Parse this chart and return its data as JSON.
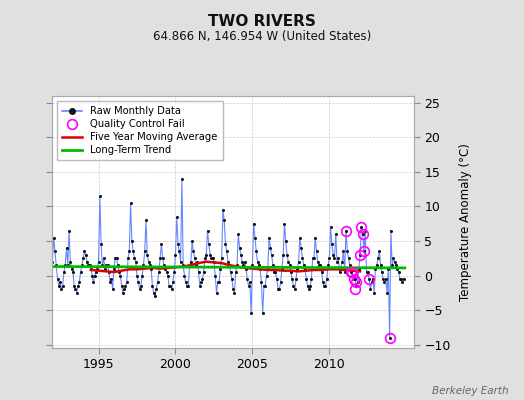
{
  "title": "TWO RIVERS",
  "subtitle": "64.866 N, 146.954 W (United States)",
  "ylabel": "Temperature Anomaly (°C)",
  "watermark": "Berkeley Earth",
  "background_color": "#e0e0e0",
  "plot_bg_color": "#ffffff",
  "ylim": [
    -10.5,
    26
  ],
  "xlim": [
    1992.0,
    2015.5
  ],
  "yticks": [
    -10,
    -5,
    0,
    5,
    10,
    15,
    20,
    25
  ],
  "xticks": [
    1995,
    2000,
    2005,
    2010
  ],
  "grid_color": "#cccccc",
  "raw_line_color": "#6688ff",
  "raw_marker_color": "#111111",
  "moving_avg_color": "#dd0000",
  "trend_color": "#00bb00",
  "qc_fail_color": "#ff00ff",
  "raw_data_x": [
    1992.0,
    1992.083,
    1992.167,
    1992.25,
    1992.333,
    1992.417,
    1992.5,
    1992.583,
    1992.667,
    1992.75,
    1992.833,
    1992.917,
    1993.0,
    1993.083,
    1993.167,
    1993.25,
    1993.333,
    1993.417,
    1993.5,
    1993.583,
    1993.667,
    1993.75,
    1993.833,
    1993.917,
    1994.0,
    1994.083,
    1994.167,
    1994.25,
    1994.333,
    1994.417,
    1994.5,
    1994.583,
    1994.667,
    1994.75,
    1994.833,
    1994.917,
    1995.0,
    1995.083,
    1995.167,
    1995.25,
    1995.333,
    1995.417,
    1995.5,
    1995.583,
    1995.667,
    1995.75,
    1995.833,
    1995.917,
    1996.0,
    1996.083,
    1996.167,
    1996.25,
    1996.333,
    1996.417,
    1996.5,
    1996.583,
    1996.667,
    1996.75,
    1996.833,
    1996.917,
    1997.0,
    1997.083,
    1997.167,
    1997.25,
    1997.333,
    1997.417,
    1997.5,
    1997.583,
    1997.667,
    1997.75,
    1997.833,
    1997.917,
    1998.0,
    1998.083,
    1998.167,
    1998.25,
    1998.333,
    1998.417,
    1998.5,
    1998.583,
    1998.667,
    1998.75,
    1998.833,
    1998.917,
    1999.0,
    1999.083,
    1999.167,
    1999.25,
    1999.333,
    1999.417,
    1999.5,
    1999.583,
    1999.667,
    1999.75,
    1999.833,
    1999.917,
    2000.0,
    2000.083,
    2000.167,
    2000.25,
    2000.333,
    2000.417,
    2000.5,
    2000.583,
    2000.667,
    2000.75,
    2000.833,
    2000.917,
    2001.0,
    2001.083,
    2001.167,
    2001.25,
    2001.333,
    2001.417,
    2001.5,
    2001.583,
    2001.667,
    2001.75,
    2001.833,
    2001.917,
    2002.0,
    2002.083,
    2002.167,
    2002.25,
    2002.333,
    2002.417,
    2002.5,
    2002.583,
    2002.667,
    2002.75,
    2002.833,
    2002.917,
    2003.0,
    2003.083,
    2003.167,
    2003.25,
    2003.333,
    2003.417,
    2003.5,
    2003.583,
    2003.667,
    2003.75,
    2003.833,
    2003.917,
    2004.0,
    2004.083,
    2004.167,
    2004.25,
    2004.333,
    2004.417,
    2004.5,
    2004.583,
    2004.667,
    2004.75,
    2004.833,
    2004.917,
    2005.0,
    2005.083,
    2005.167,
    2005.25,
    2005.333,
    2005.417,
    2005.5,
    2005.583,
    2005.667,
    2005.75,
    2005.833,
    2005.917,
    2006.0,
    2006.083,
    2006.167,
    2006.25,
    2006.333,
    2006.417,
    2006.5,
    2006.583,
    2006.667,
    2006.75,
    2006.833,
    2006.917,
    2007.0,
    2007.083,
    2007.167,
    2007.25,
    2007.333,
    2007.417,
    2007.5,
    2007.583,
    2007.667,
    2007.75,
    2007.833,
    2007.917,
    2008.0,
    2008.083,
    2008.167,
    2008.25,
    2008.333,
    2008.417,
    2008.5,
    2008.583,
    2008.667,
    2008.75,
    2008.833,
    2008.917,
    2009.0,
    2009.083,
    2009.167,
    2009.25,
    2009.333,
    2009.417,
    2009.5,
    2009.583,
    2009.667,
    2009.75,
    2009.833,
    2009.917,
    2010.0,
    2010.083,
    2010.167,
    2010.25,
    2010.333,
    2010.417,
    2010.5,
    2010.583,
    2010.667,
    2010.75,
    2010.833,
    2010.917,
    2011.0,
    2011.083,
    2011.167,
    2011.25,
    2011.333,
    2011.417,
    2011.5,
    2011.583,
    2011.667,
    2011.75,
    2011.833,
    2011.917,
    2012.0,
    2012.083,
    2012.167,
    2012.25,
    2012.333,
    2012.417,
    2012.5,
    2012.583,
    2012.667,
    2012.75,
    2012.833,
    2012.917,
    2013.0,
    2013.083,
    2013.167,
    2013.25,
    2013.333,
    2013.417,
    2013.5,
    2013.583,
    2013.667,
    2013.75,
    2013.833,
    2013.917,
    2014.0,
    2014.083,
    2014.167,
    2014.25,
    2014.333,
    2014.417,
    2014.5,
    2014.583,
    2014.667,
    2014.75,
    2014.833
  ],
  "raw_data_y": [
    2.0,
    5.5,
    3.5,
    1.5,
    -0.5,
    -1.5,
    -1.0,
    -2.0,
    -1.5,
    0.5,
    1.5,
    4.0,
    1.5,
    6.5,
    2.0,
    1.0,
    0.5,
    -1.5,
    -2.0,
    -2.5,
    -1.5,
    -1.0,
    0.5,
    1.5,
    2.5,
    3.5,
    3.0,
    2.0,
    1.5,
    1.5,
    1.0,
    0.0,
    -1.0,
    0.0,
    0.5,
    1.0,
    2.0,
    11.5,
    4.5,
    1.5,
    2.5,
    1.0,
    1.5,
    1.5,
    0.5,
    -1.0,
    -0.5,
    -2.0,
    1.0,
    2.5,
    2.5,
    1.5,
    0.5,
    0.0,
    -1.5,
    -2.5,
    -2.0,
    -1.5,
    -1.0,
    2.5,
    3.5,
    10.5,
    5.0,
    3.5,
    2.5,
    2.0,
    0.0,
    -1.0,
    -2.0,
    -1.5,
    0.0,
    1.5,
    3.5,
    8.0,
    3.0,
    2.0,
    1.5,
    1.0,
    -1.5,
    -2.5,
    -3.0,
    -2.0,
    -1.0,
    0.5,
    2.5,
    4.5,
    2.5,
    1.5,
    1.0,
    0.5,
    0.0,
    -1.5,
    -1.5,
    -2.0,
    -1.0,
    0.5,
    3.0,
    8.5,
    4.5,
    3.5,
    2.0,
    14.0,
    1.5,
    0.0,
    -1.0,
    -1.5,
    -1.5,
    1.5,
    2.0,
    5.0,
    3.5,
    2.5,
    1.5,
    2.0,
    0.5,
    -1.5,
    -1.0,
    -0.5,
    0.5,
    2.5,
    3.0,
    6.5,
    4.5,
    3.0,
    2.5,
    2.5,
    2.0,
    0.0,
    -2.5,
    -1.0,
    -1.0,
    1.0,
    2.5,
    9.5,
    8.0,
    4.5,
    3.5,
    2.0,
    1.5,
    0.5,
    -0.5,
    -2.0,
    -2.5,
    0.5,
    1.5,
    6.0,
    4.0,
    3.0,
    2.0,
    1.5,
    2.0,
    1.0,
    -0.5,
    -1.5,
    -1.0,
    -5.5,
    1.5,
    7.5,
    5.5,
    3.5,
    2.0,
    1.5,
    1.0,
    -1.0,
    -5.5,
    -1.5,
    -1.5,
    0.0,
    1.0,
    5.5,
    4.0,
    3.0,
    1.5,
    0.5,
    0.5,
    -0.5,
    -2.0,
    -2.0,
    -1.0,
    1.0,
    3.0,
    7.5,
    5.0,
    3.0,
    2.0,
    1.5,
    0.5,
    -0.5,
    -1.5,
    -2.0,
    -0.5,
    1.0,
    2.0,
    5.5,
    4.0,
    2.5,
    1.5,
    1.0,
    -0.5,
    -1.5,
    -2.0,
    -1.5,
    -0.5,
    2.5,
    2.5,
    5.5,
    3.5,
    2.0,
    1.5,
    1.5,
    0.5,
    -1.0,
    -1.5,
    -1.5,
    -0.5,
    1.5,
    2.5,
    7.0,
    4.5,
    3.0,
    2.5,
    6.0,
    2.0,
    2.5,
    0.5,
    1.0,
    2.0,
    3.5,
    0.5,
    6.5,
    3.5,
    2.5,
    1.5,
    0.5,
    0.0,
    -0.5,
    -0.5,
    -1.5,
    -1.0,
    1.0,
    3.0,
    7.0,
    6.0,
    3.5,
    6.5,
    0.5,
    0.5,
    -0.5,
    -2.0,
    -1.0,
    -0.5,
    -2.5,
    1.0,
    1.5,
    2.5,
    3.5,
    1.5,
    0.5,
    -0.5,
    -1.0,
    -0.5,
    -2.5,
    1.0,
    -9.0,
    6.5,
    1.5,
    2.5,
    2.0,
    1.5,
    1.0,
    0.5,
    -0.5,
    -0.5,
    -1.0,
    -0.5
  ],
  "moving_avg_x": [
    1994.5,
    1995.0,
    1995.5,
    1996.0,
    1996.5,
    1997.0,
    1997.5,
    1998.0,
    1998.5,
    1999.0,
    1999.5,
    2000.0,
    2000.5,
    2001.0,
    2001.5,
    2002.0,
    2002.5,
    2003.0,
    2003.5,
    2004.0,
    2004.5,
    2005.0,
    2005.5,
    2006.0,
    2006.5,
    2007.0,
    2007.5,
    2008.0,
    2008.5,
    2009.0,
    2009.5,
    2010.0,
    2010.5,
    2011.0,
    2011.5,
    2012.0
  ],
  "moving_avg_y": [
    0.8,
    0.7,
    0.6,
    0.5,
    0.7,
    0.9,
    0.9,
    1.0,
    1.1,
    1.0,
    1.1,
    1.2,
    1.3,
    1.5,
    1.8,
    2.0,
    1.9,
    1.8,
    1.5,
    1.3,
    1.1,
    1.0,
    0.9,
    0.8,
    0.8,
    0.7,
    0.7,
    0.6,
    0.7,
    0.8,
    0.8,
    0.9,
    0.9,
    0.8,
    0.7,
    0.6
  ],
  "trend_x": [
    1992.0,
    2014.9
  ],
  "trend_y": [
    1.3,
    1.1
  ],
  "qc_fail_x": [
    2011.083,
    2011.417,
    2011.5,
    2011.583,
    2011.667,
    2011.75,
    2012.0,
    2012.083,
    2012.167,
    2012.25,
    2012.583,
    2013.917
  ],
  "qc_fail_y": [
    6.5,
    0.5,
    0.5,
    -0.5,
    -2.0,
    -1.0,
    3.0,
    7.0,
    6.0,
    3.5,
    -0.5,
    -9.0
  ]
}
